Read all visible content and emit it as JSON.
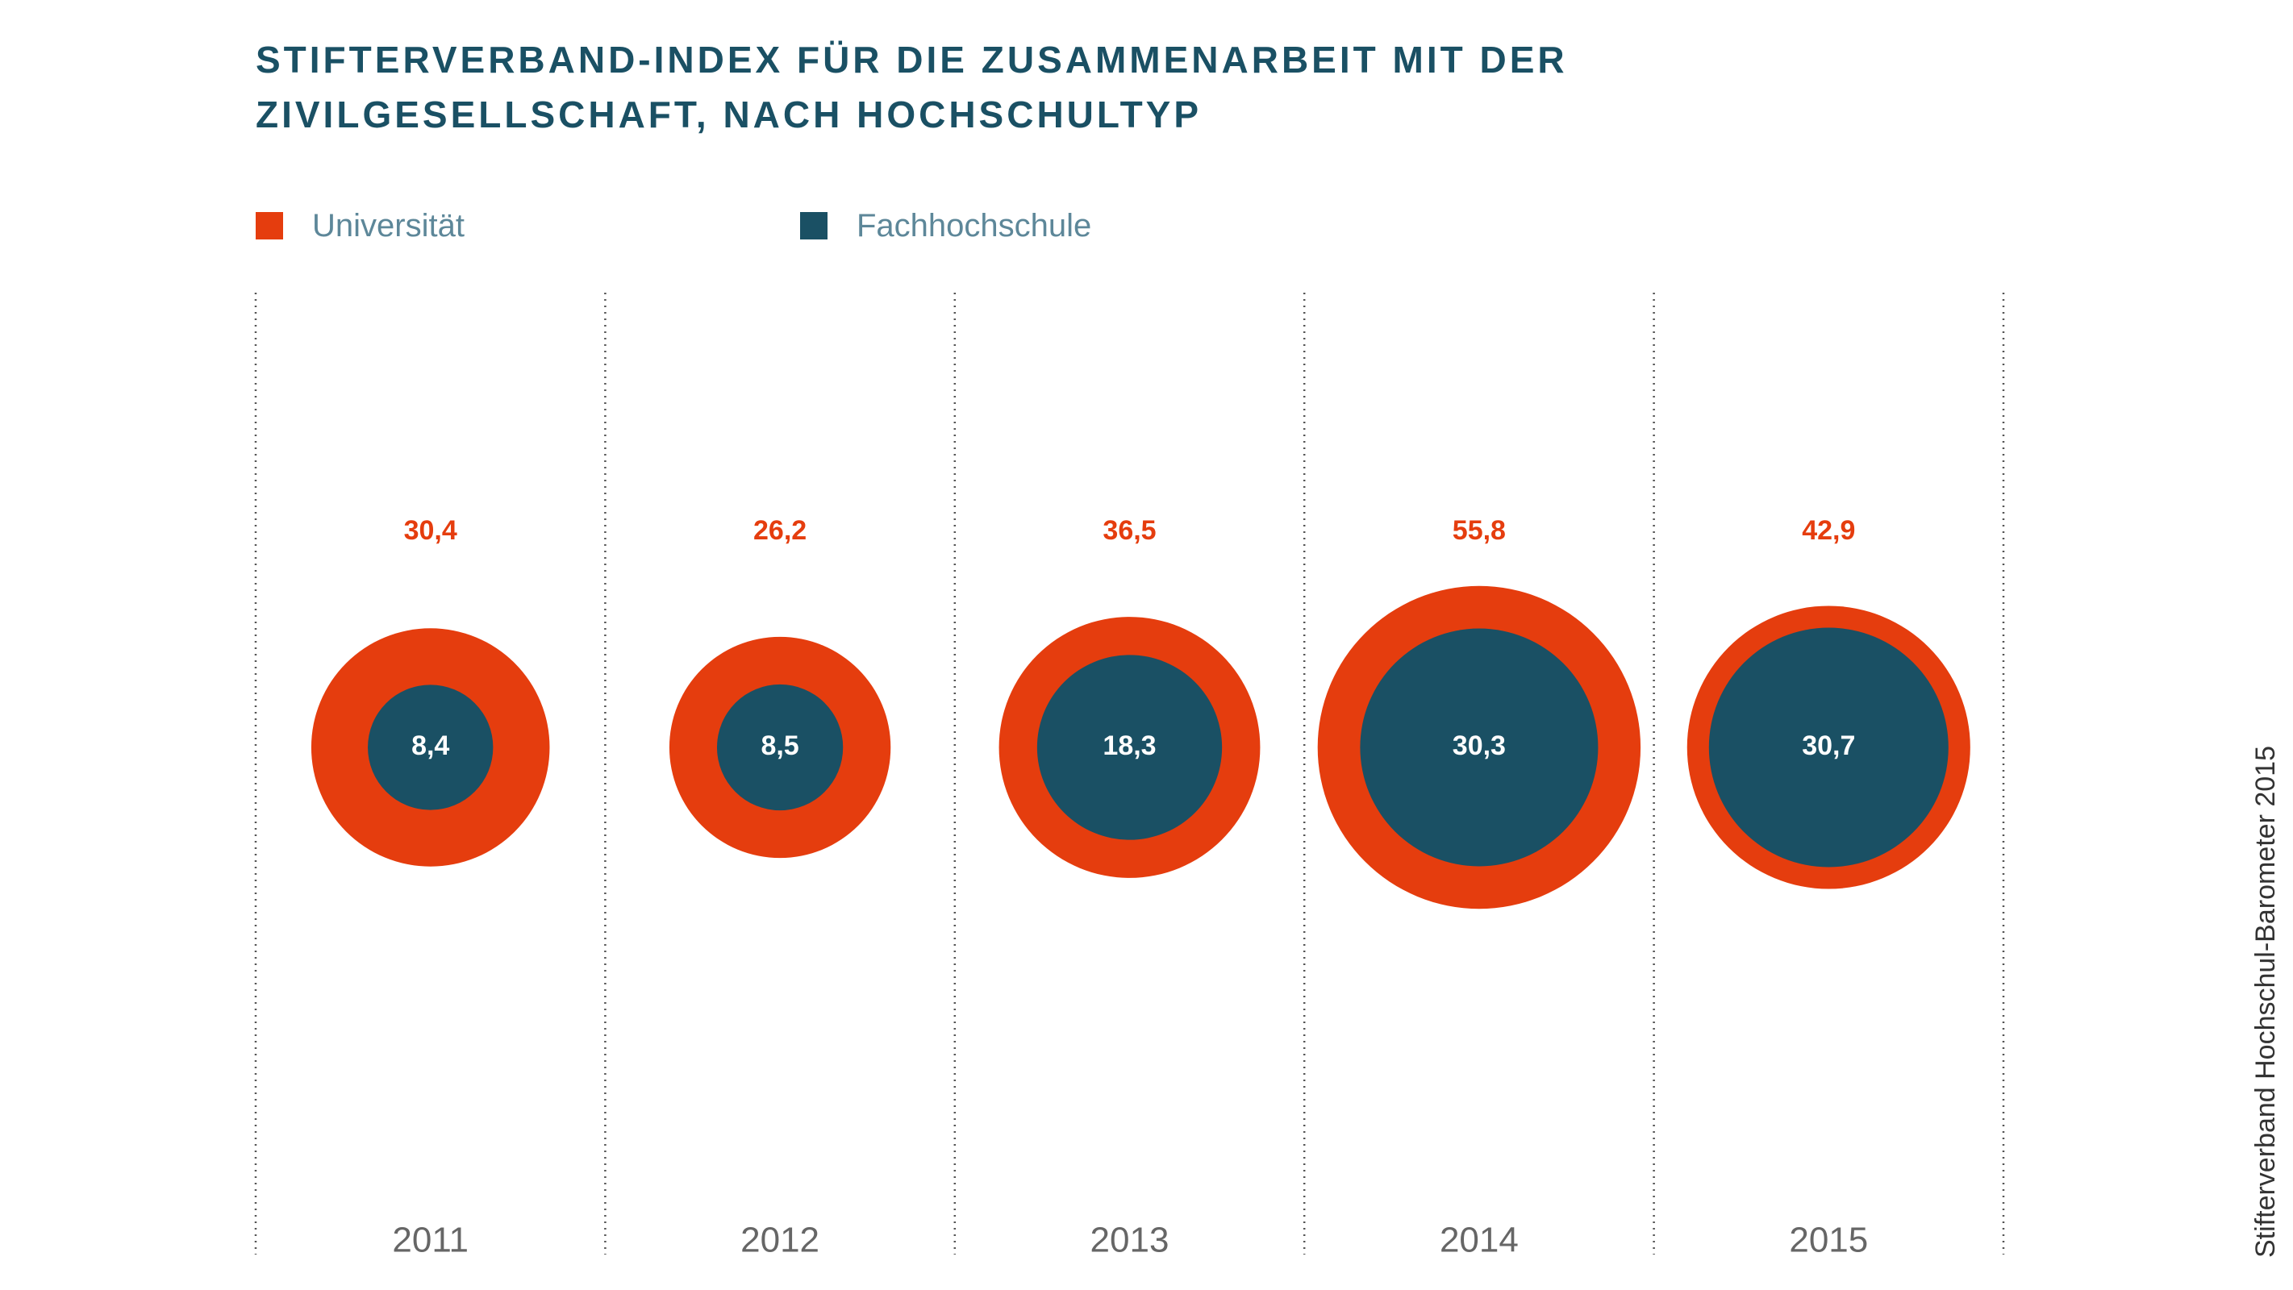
{
  "chart_data": {
    "type": "bubble",
    "title": "STIFTERVERBAND-INDEX FÜR DIE ZUSAMMENARBEIT MIT DER ZIVILGESELLSCHAFT, NACH HOCHSCHULTYP",
    "title_lines": [
      "STIFTERVERBAND-INDEX FÜR DIE ZUSAMMENARBEIT MIT DER",
      "ZIVILGESELLSCHAFT, NACH HOCHSCHULTYP"
    ],
    "categories": [
      "2011",
      "2012",
      "2013",
      "2014",
      "2015"
    ],
    "series": [
      {
        "name": "Universität",
        "color": "#e53d0e",
        "values": [
          30.4,
          26.2,
          36.5,
          55.8,
          42.9
        ],
        "labels": [
          "30,4",
          "26,2",
          "36,5",
          "55,8",
          "42,9"
        ]
      },
      {
        "name": "Fachhochschule",
        "color": "#1a5064",
        "values": [
          8.4,
          8.5,
          18.3,
          30.3,
          30.7
        ],
        "labels": [
          "8,4",
          "8,5",
          "18,3",
          "30,3",
          "30,7"
        ]
      }
    ],
    "legend_position": "top-left",
    "grid": "dotted vertical separators",
    "source": "Stifterverband Hochschul-Barometer 2015"
  }
}
